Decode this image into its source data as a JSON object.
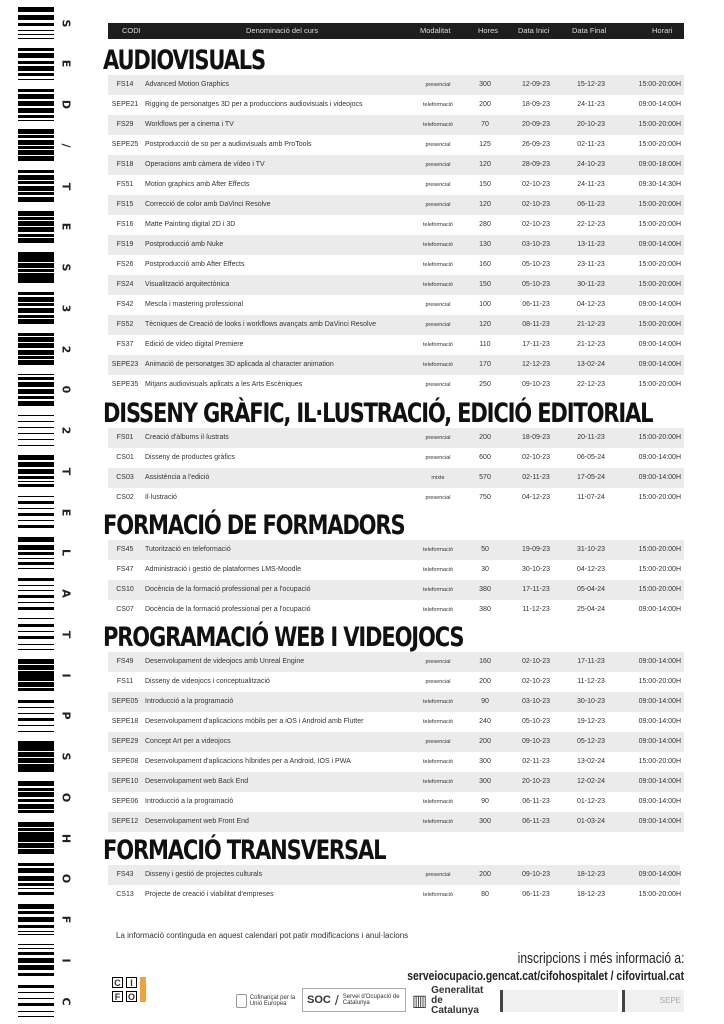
{
  "barcode": {
    "text": "CIFOHOSPITALET2023SET/DES",
    "letters": [
      "S",
      "E",
      "D",
      "/",
      "T",
      "E",
      "S",
      "3",
      "2",
      "0",
      "2",
      "T",
      "E",
      "L",
      "A",
      "T",
      "I",
      "P",
      "S",
      "O",
      "H",
      "O",
      "F",
      "I",
      "C"
    ]
  },
  "header": {
    "codi": "CODI",
    "denominacio": "Denominació del curs",
    "modalitat": "Modalitat",
    "hores": "Hores",
    "data_inici": "Data Inici",
    "data_final": "Data Final",
    "horari": "Horari"
  },
  "sections": [
    {
      "title": "AUDIOVISUALS",
      "courses": [
        [
          "FS14",
          "Advanced Motion Graphics",
          "presencial",
          "300",
          "12-09-23",
          "15-12-23",
          "15:00-20:00H"
        ],
        [
          "SEPE21",
          "Rigging de personatges 3D per a produccions audiovisuals i videojocs",
          "teleformació",
          "200",
          "18-09-23",
          "24-11-23",
          "09:00-14:00H"
        ],
        [
          "FS29",
          "Workflows per a cinema i TV",
          "teleformació",
          "70",
          "20-09-23",
          "20-10-23",
          "15:00-20:00H"
        ],
        [
          "SEPE25",
          "Postproducció de so per a audiovisuals amb ProTools",
          "presencial",
          "125",
          "26-09-23",
          "02-11-23",
          "15:00-20:00H"
        ],
        [
          "FS18",
          "Operacions amb càmera de vídeo i TV",
          "presencial",
          "120",
          "28-09-23",
          "24-10-23",
          "09:00-18:00H"
        ],
        [
          "FS51",
          "Motion graphics amb After Effects",
          "presencial",
          "150",
          "02-10-23",
          "24-11-23",
          "09:30-14:30H"
        ],
        [
          "FS15",
          "Correcció de color amb DaVinci Resolve",
          "presencial",
          "120",
          "02-10-23",
          "06-11-23",
          "15:00-20:00H"
        ],
        [
          "FS16",
          "Matte Painting digital 2D i 3D",
          "teleformació",
          "280",
          "02-10-23",
          "22-12-23",
          "15:00-20:00H"
        ],
        [
          "FS19",
          "Postproducció amb Nuke",
          "teleformació",
          "130",
          "03-10-23",
          "13-11-23",
          "09:00-14:00H"
        ],
        [
          "FS26",
          "Postproducció amb After Effects",
          "teleformació",
          "160",
          "05-10-23",
          "23-11-23",
          "15:00-20:00H"
        ],
        [
          "FS24",
          "Visualització arquitectònica",
          "teleformació",
          "150",
          "05-10-23",
          "30-11-23",
          "15:00-20:00H"
        ],
        [
          "FS42",
          "Mescla i mastering professional",
          "presencial",
          "100",
          "06-11-23",
          "04-12-23",
          "09:00-14:00H"
        ],
        [
          "FS52",
          "Tècniques de Creació de looks i workflows avançats amb DaVinci Resolve",
          "presencial",
          "120",
          "08-11-23",
          "21-12-23",
          "15:00-20:00H"
        ],
        [
          "FS37",
          "Edició de vídeo digital Premiere",
          "teleformació",
          "110",
          "17-11-23",
          "21-12-23",
          "09:00-14:00H"
        ],
        [
          "SEPE23",
          "Animació de personatges 3D aplicada al character animation",
          "teleformació",
          "170",
          "12-12-23",
          "13-02-24",
          "09:00-14:00H"
        ],
        [
          "SEPE35",
          "Mitjans audiovisuals aplicats a les Arts Escèniques",
          "presencial",
          "250",
          "09-10-23",
          "22-12-23",
          "15:00-20:00H"
        ]
      ]
    },
    {
      "title": "DISSENY GRÀFIC, IL·LUSTRACIÓ, EDICIÓ EDITORIAL",
      "courses": [
        [
          "FS01",
          "Creació d'àlbums il·lustrats",
          "presencial",
          "200",
          "18-09-23",
          "20-11-23",
          "15:00-20:00H"
        ],
        [
          "CS01",
          "Disseny de productes gràfics",
          "presencial",
          "600",
          "02-10-23",
          "06-05-24",
          "09:00-14:00H"
        ],
        [
          "CS03",
          "Assistència a l'edició",
          "mixte",
          "570",
          "02-11-23",
          "17-05-24",
          "09:00-14:00H"
        ],
        [
          "CS02",
          "Il·lustració",
          "presencial",
          "750",
          "04-12-23",
          "11-07-24",
          "15:00-20:00H"
        ]
      ]
    },
    {
      "title": "FORMACIÓ DE FORMADORS",
      "courses": [
        [
          "FS45",
          "Tutorització en teleformació",
          "teleformació",
          "50",
          "19-09-23",
          "31-10-23",
          "15:00-20:00H"
        ],
        [
          "FS47",
          "Administració i gestió de plataformes LMS-Moodle",
          "teleformació",
          "30",
          "30-10-23",
          "04-12-23",
          "15:00-20:00H"
        ],
        [
          "CS10",
          "Docència de la formació professional per a l'ocupació",
          "teleformació",
          "380",
          "17-11-23",
          "05-04-24",
          "15:00-20:00H"
        ],
        [
          "CS07",
          "Docència de la formació professional per a l'ocupació",
          "teleformació",
          "380",
          "11-12-23",
          "25-04-24",
          "09:00-14:00H"
        ]
      ]
    },
    {
      "title": "PROGRAMACIÓ WEB I VIDEOJOCS",
      "courses": [
        [
          "FS49",
          "Desenvolupament de videojocs amb Unreal Engine",
          "presencial",
          "160",
          "02-10-23",
          "17-11-23",
          "09:00-14:00H"
        ],
        [
          "FS11",
          "Disseny de videojocs i conceptualització",
          "presencial",
          "200",
          "02-10-23",
          "11-12-23",
          "15:00-20:00H"
        ],
        [
          "SEPE05",
          "Introducció a la programació",
          "teleformació",
          "90",
          "03-10-23",
          "30-10-23",
          "09:00-14:00H"
        ],
        [
          "SEPE18",
          "Desenvolupament d'aplicacions mòbils per a iOS i Android amb Flutter",
          "teleformació",
          "240",
          "05-10-23",
          "19-12-23",
          "09:00-14:00H"
        ],
        [
          "SEPE29",
          "Concept Art per a videojocs",
          "presencial",
          "200",
          "09-10-23",
          "05-12-23",
          "09:00-14:00H"
        ],
        [
          "SEPE08",
          "Desenvolupament d'aplicacions híbrides per a Android, IOS i PWA",
          "teleformació",
          "300",
          "02-11-23",
          "13-02-24",
          "15:00-20:00H"
        ],
        [
          "SEPE10",
          "Desenvolupament web Back End",
          "teleformació",
          "300",
          "20-10-23",
          "12-02-24",
          "09:00-14:00H"
        ],
        [
          "SEPE06",
          "Introducció a la programació",
          "teleformació",
          "90",
          "06-11-23",
          "01-12-23",
          "09:00-14:00H"
        ],
        [
          "SEPE12",
          "Desenvolupament web Front End",
          "teleformació",
          "300",
          "06-11-23",
          "01-03-24",
          "09:00-14:00H"
        ]
      ]
    },
    {
      "title": "FORMACIÓ TRANSVERSAL",
      "courses": [
        [
          "FS43",
          "Disseny i gestió de projectes culturals",
          "presencial",
          "200",
          "09-10-23",
          "18-12-23",
          "09:00-14:00H"
        ],
        [
          "CS13",
          "Projecte de creació i viabilitat d'empreses",
          "teleformació",
          "80",
          "06-11-23",
          "18-12-23",
          "15:00-20:00H"
        ]
      ]
    }
  ],
  "footer": {
    "note": "La informació continguda en aquest calendari pot patir modificacions i anul·lacions",
    "inscripcions": "inscripcions i més informació a:",
    "url": "serveiocupacio.gencat.cat/cifohospitalet / cifovirtual.cat"
  },
  "logos": {
    "cifo": [
      "C",
      "I",
      "F",
      "O"
    ],
    "eu": "Cofinançat per la Unió Europea",
    "soc": "SOC",
    "soc_text": "Servei d'Ocupació de Catalunya",
    "gencat": "Generalitat de Catalunya",
    "sepe": "SEPE"
  }
}
